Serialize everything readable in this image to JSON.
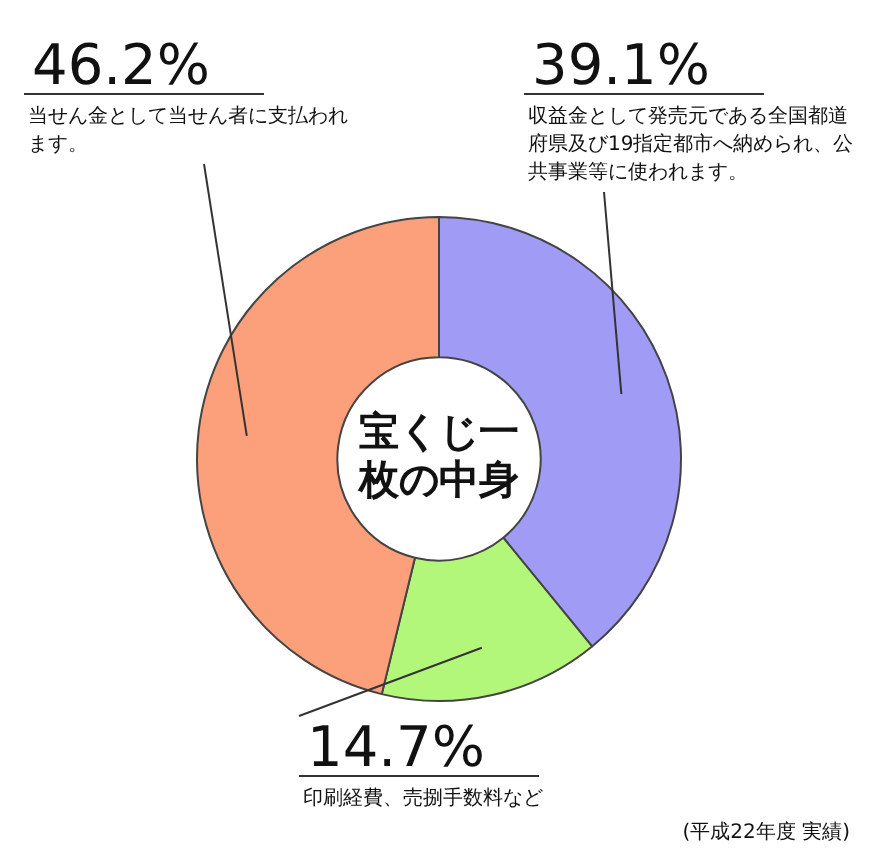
{
  "chart_data": {
    "type": "donut",
    "title": "宝くじ一枚の中身",
    "categories": [
      "収益金として発売元である全国都道府県及び19指定都市へ納められ、公共事業等に使われます。",
      "印刷経費、売捌手数料など",
      "当せん金として当せん者に支払われます。"
    ],
    "values": [
      39.1,
      14.7,
      46.2
    ],
    "colors": [
      "#a09cf6",
      "#b3f77a",
      "#fca07b"
    ],
    "value_labels": [
      "39.1%",
      "14.7%",
      "46.2%"
    ],
    "legend": false,
    "annotations": [
      "(平成22年度 実績)"
    ]
  }
}
